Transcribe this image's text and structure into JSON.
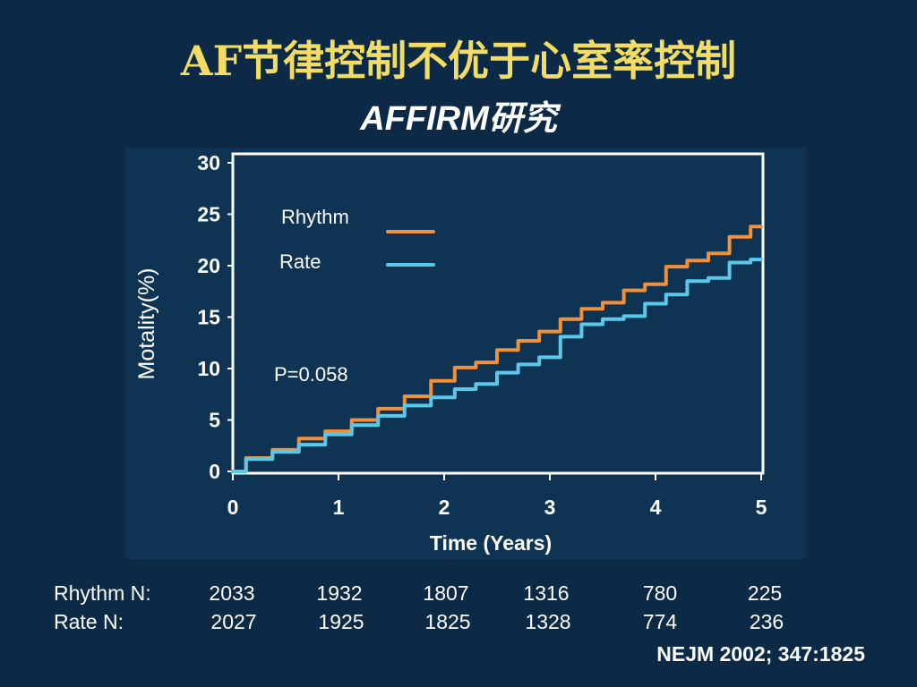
{
  "slide": {
    "title": "AF节律控制不优于心室率控制",
    "subtitle": "AFFIRM研究",
    "citation": "NEJM 2002; 347:1825",
    "background_color": "#0c2a45",
    "title_color": "#f3dc63"
  },
  "chart_data": {
    "type": "line",
    "xlabel": "Time (Years)",
    "ylabel": "Motality(%)",
    "xlim": [
      0,
      5
    ],
    "ylim": [
      0,
      30
    ],
    "x_ticks": [
      "0",
      "1",
      "2",
      "3",
      "4",
      "5"
    ],
    "y_ticks": [
      "0",
      "5",
      "10",
      "15",
      "20",
      "25",
      "30"
    ],
    "grid": false,
    "legend": "top-left",
    "annotation": "P=0.058",
    "series": [
      {
        "name": "Rhythm",
        "color": "#f0903a",
        "x": [
          0,
          0.25,
          0.5,
          0.75,
          1.0,
          1.25,
          1.5,
          1.75,
          2.0,
          2.2,
          2.4,
          2.6,
          2.8,
          3.0,
          3.2,
          3.4,
          3.6,
          3.8,
          4.0,
          4.2,
          4.4,
          4.6,
          4.8,
          5.0
        ],
        "y": [
          0,
          1.3,
          2.1,
          3.2,
          3.9,
          5.0,
          6.1,
          7.3,
          8.8,
          10.1,
          10.6,
          11.8,
          12.7,
          13.6,
          14.8,
          15.8,
          16.4,
          17.6,
          18.2,
          19.9,
          20.5,
          21.2,
          22.8,
          23.8
        ]
      },
      {
        "name": "Rate",
        "color": "#5bc8ea",
        "x": [
          0,
          0.25,
          0.5,
          0.75,
          1.0,
          1.25,
          1.5,
          1.75,
          2.0,
          2.2,
          2.4,
          2.6,
          2.8,
          3.0,
          3.2,
          3.4,
          3.6,
          3.8,
          4.0,
          4.2,
          4.4,
          4.6,
          4.8,
          5.0
        ],
        "y": [
          0,
          1.2,
          1.9,
          2.6,
          3.6,
          4.5,
          5.4,
          6.4,
          7.2,
          8.0,
          8.5,
          9.6,
          10.4,
          11.1,
          13.1,
          14.3,
          14.8,
          15.1,
          16.3,
          17.2,
          18.5,
          18.8,
          20.3,
          20.6
        ]
      }
    ]
  },
  "n_table": {
    "rows": [
      {
        "label": "Rhythm N:",
        "values": [
          "2033",
          "1932",
          "1807",
          "1316",
          "780",
          "225"
        ]
      },
      {
        "label": "Rate N:",
        "values": [
          "2027",
          "1925",
          "1825",
          "1328",
          "774",
          "236"
        ]
      }
    ]
  }
}
